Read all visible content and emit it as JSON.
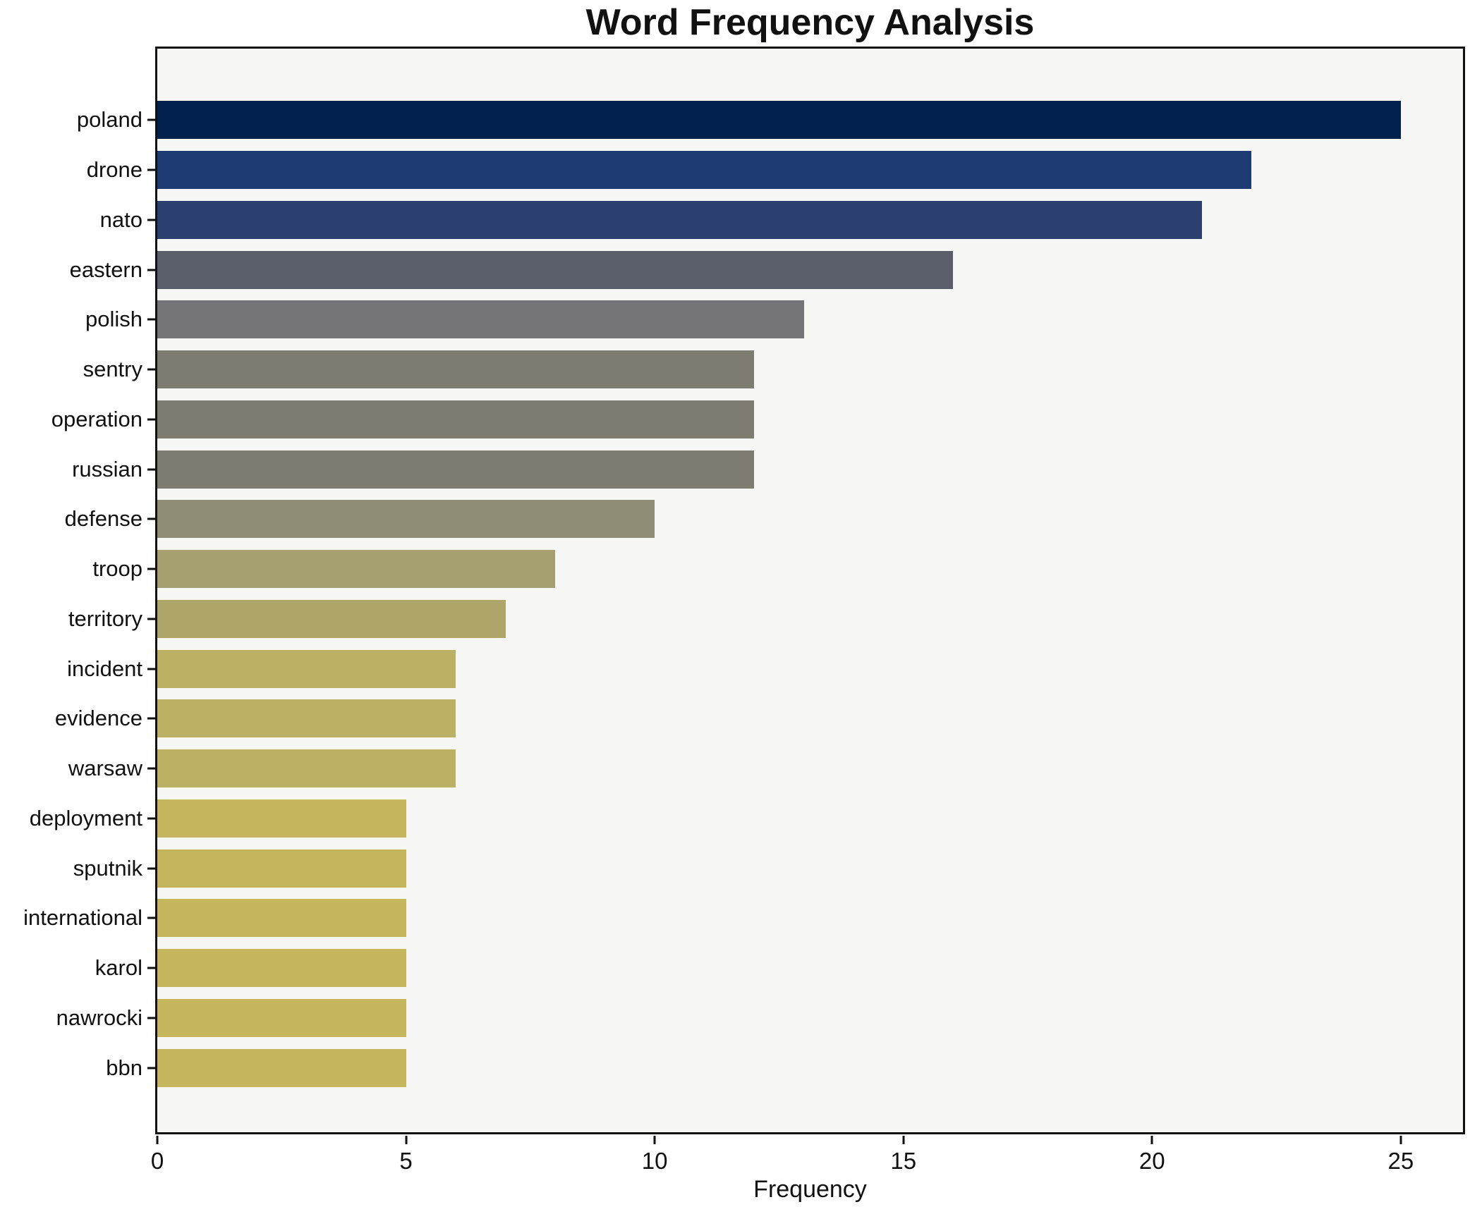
{
  "chart_data": {
    "type": "bar",
    "orientation": "horizontal",
    "title": "Word Frequency Analysis",
    "xlabel": "Frequency",
    "ylabel": "",
    "xlim": [
      0,
      26.25
    ],
    "x_ticks": [
      0,
      5,
      10,
      15,
      20,
      25
    ],
    "grid": false,
    "legend": "none",
    "plot_background": "#f6f6f5",
    "figure_background": "#ffffff",
    "spine_color": "#111111",
    "categories": [
      "poland",
      "drone",
      "nato",
      "eastern",
      "polish",
      "sentry",
      "operation",
      "russian",
      "defense",
      "troop",
      "territory",
      "incident",
      "evidence",
      "warsaw",
      "deployment",
      "sputnik",
      "international",
      "karol",
      "nawrocki",
      "bbn"
    ],
    "values": [
      25,
      22,
      21,
      16,
      13,
      12,
      12,
      12,
      10,
      8,
      7,
      6,
      6,
      6,
      5,
      5,
      5,
      5,
      5,
      5
    ],
    "bar_colors": [
      "#03214d",
      "#1d3b72",
      "#2c4070",
      "#5b5f6b",
      "#757577",
      "#7e7b71",
      "#7e7b71",
      "#7e7b71",
      "#908d76",
      "#a6a071",
      "#aea56b",
      "#bbb063",
      "#bbb063",
      "#bbb063",
      "#c5b65e",
      "#c5b65e",
      "#c5b65e",
      "#c5b65e",
      "#c5b65e",
      "#c5b65e"
    ]
  }
}
